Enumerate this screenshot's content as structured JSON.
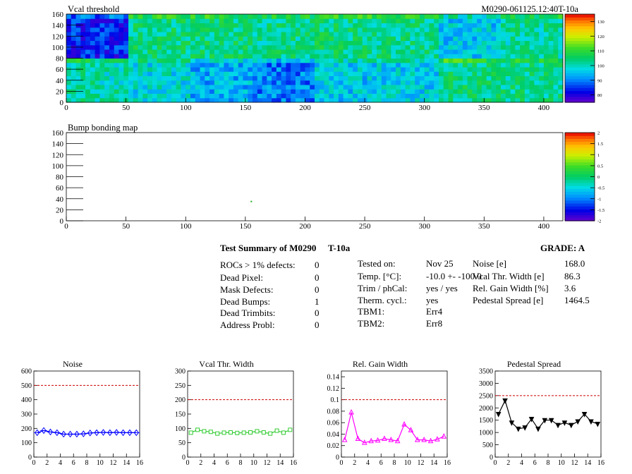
{
  "page_title": "M0290-061125.12:40T-10a",
  "colors": {
    "axis": "#000000",
    "limit_line": "#cc0000",
    "noise_series": "#0000ff",
    "vcal_series": "#33cc33",
    "gain_series": "#ff00ff",
    "pedestal_series": "#000000"
  },
  "summary": {
    "title": "Test Summary of M0290",
    "temp_tag": "T-10a",
    "grade_label": "GRADE:  A",
    "defects": [
      {
        "label": "ROCs > 1% defects:",
        "value": "0"
      },
      {
        "label": "Dead Pixel:",
        "value": "0"
      },
      {
        "label": "Mask Defects:",
        "value": "0"
      },
      {
        "label": "Dead Bumps:",
        "value": "1"
      },
      {
        "label": "Dead Trimbits:",
        "value": "0"
      },
      {
        "label": "Address Probl:",
        "value": "0"
      }
    ],
    "conditions": [
      {
        "label": "Tested on:",
        "value": "Nov 25"
      },
      {
        "label": "Temp. [°C]:",
        "value": "-10.0 +- -100.0"
      },
      {
        "label": "Trim / phCal:",
        "value": "yes / yes"
      },
      {
        "label": "Therm. cycl.:",
        "value": "yes"
      },
      {
        "label": "TBM1:",
        "value": "Err4"
      },
      {
        "label": "TBM2:",
        "value": "Err8"
      }
    ],
    "results": [
      {
        "label": "Noise [e]",
        "value": "168.0"
      },
      {
        "label": "Vcal Thr. Width [e]",
        "value": "86.3"
      },
      {
        "label": "Rel. Gain Width [%]",
        "value": "3.6"
      },
      {
        "label": "Pedestal Spread [e]",
        "value": "1464.5"
      }
    ]
  },
  "chart_data": [
    {
      "type": "heatmap",
      "title": "Vcal threshold",
      "xlim": [
        0,
        416
      ],
      "ylim": [
        0,
        160
      ],
      "xticks": [
        0,
        50,
        100,
        150,
        200,
        250,
        300,
        350,
        400
      ],
      "yticks": [
        0,
        20,
        40,
        60,
        80,
        100,
        120,
        140,
        160
      ],
      "colorbar": {
        "min": 75,
        "max": 135,
        "ticks": [
          80,
          90,
          100,
          110,
          120,
          130
        ]
      },
      "roc_cols": 8,
      "roc_rows": 2,
      "roc_means": {
        "top": [
          84,
          104,
          104,
          103,
          104,
          103,
          96,
          102
        ],
        "bottom": [
          101,
          98,
          94,
          90,
          96,
          97,
          104,
          103
        ]
      }
    },
    {
      "type": "heatmap",
      "title": "Bump bonding map",
      "xlim": [
        0,
        416
      ],
      "ylim": [
        0,
        160
      ],
      "xticks": [
        0,
        50,
        100,
        150,
        200,
        250,
        300,
        350,
        400
      ],
      "yticks": [
        0,
        20,
        40,
        60,
        80,
        100,
        120,
        140,
        160
      ],
      "colorbar": {
        "min": -2,
        "max": 2,
        "ticks": [
          -2,
          -1.5,
          -1,
          -0.5,
          0,
          0.5,
          1,
          1.5,
          2
        ]
      },
      "points": [
        {
          "x": 155,
          "y": 35
        }
      ]
    },
    {
      "type": "line",
      "title": "Noise",
      "xlim": [
        0,
        16
      ],
      "ylim": [
        0,
        600
      ],
      "xticks": [
        0,
        2,
        4,
        6,
        8,
        10,
        12,
        14,
        16
      ],
      "yticks": [
        0,
        100,
        200,
        300,
        400,
        500,
        600
      ],
      "limit": 500,
      "x": [
        0.5,
        1.5,
        2.5,
        3.5,
        4.5,
        5.5,
        6.5,
        7.5,
        8.5,
        9.5,
        10.5,
        11.5,
        12.5,
        13.5,
        14.5,
        15.5
      ],
      "values": [
        170,
        185,
        175,
        170,
        160,
        160,
        160,
        162,
        168,
        170,
        172,
        170,
        172,
        170,
        170,
        170
      ]
    },
    {
      "type": "line",
      "title": "Vcal Thr. Width",
      "xlim": [
        0,
        16
      ],
      "ylim": [
        0,
        300
      ],
      "xticks": [
        0,
        2,
        4,
        6,
        8,
        10,
        12,
        14,
        16
      ],
      "yticks": [
        0,
        50,
        100,
        150,
        200,
        250,
        300
      ],
      "limit": 200,
      "x": [
        0.5,
        1.5,
        2.5,
        3.5,
        4.5,
        5.5,
        6.5,
        7.5,
        8.5,
        9.5,
        10.5,
        11.5,
        12.5,
        13.5,
        14.5,
        15.5
      ],
      "values": [
        85,
        95,
        90,
        88,
        82,
        85,
        86,
        84,
        85,
        86,
        90,
        86,
        82,
        92,
        85,
        95
      ]
    },
    {
      "type": "line",
      "title": "Rel. Gain Width",
      "xlim": [
        0,
        16
      ],
      "ylim": [
        0,
        0.15
      ],
      "xticks": [
        0,
        2,
        4,
        6,
        8,
        10,
        12,
        14,
        16
      ],
      "yticks": [
        0,
        0.02,
        0.04,
        0.06,
        0.08,
        0.1,
        0.12,
        0.14
      ],
      "limit": 0.1,
      "x": [
        0.5,
        1.5,
        2.5,
        3.5,
        4.5,
        5.5,
        6.5,
        7.5,
        8.5,
        9.5,
        10.5,
        11.5,
        12.5,
        13.5,
        14.5,
        15.5
      ],
      "values": [
        0.03,
        0.078,
        0.032,
        0.025,
        0.028,
        0.029,
        0.032,
        0.03,
        0.028,
        0.057,
        0.047,
        0.03,
        0.03,
        0.028,
        0.031,
        0.036
      ]
    },
    {
      "type": "line",
      "title": "Pedestal Spread",
      "xlim": [
        0,
        16
      ],
      "ylim": [
        0,
        3500
      ],
      "xticks": [
        0,
        2,
        4,
        6,
        8,
        10,
        12,
        14,
        16
      ],
      "yticks": [
        0,
        500,
        1000,
        1500,
        2000,
        2500,
        3000,
        3500
      ],
      "limit": 2500,
      "x": [
        0.5,
        1.5,
        2.5,
        3.5,
        4.5,
        5.5,
        6.5,
        7.5,
        8.5,
        9.5,
        10.5,
        11.5,
        12.5,
        13.5,
        14.5,
        15.5
      ],
      "values": [
        1750,
        2300,
        1400,
        1150,
        1200,
        1550,
        1150,
        1500,
        1500,
        1300,
        1400,
        1300,
        1450,
        1750,
        1450,
        1350
      ]
    }
  ]
}
